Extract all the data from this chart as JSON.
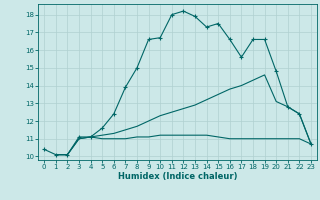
{
  "xlabel": "Humidex (Indice chaleur)",
  "bg_color": "#cce8e8",
  "grid_color": "#b0d0d0",
  "line_color": "#006666",
  "xlim": [
    -0.5,
    23.5
  ],
  "ylim": [
    9.8,
    18.6
  ],
  "xticks": [
    0,
    1,
    2,
    3,
    4,
    5,
    6,
    7,
    8,
    9,
    10,
    11,
    12,
    13,
    14,
    15,
    16,
    17,
    18,
    19,
    20,
    21,
    22,
    23
  ],
  "yticks": [
    10,
    11,
    12,
    13,
    14,
    15,
    16,
    17,
    18
  ],
  "line1_x": [
    0,
    1,
    2,
    3,
    4,
    5,
    6,
    7,
    8,
    9,
    10,
    11,
    12,
    13,
    14,
    15,
    16,
    17,
    18,
    19,
    20,
    21,
    22,
    23
  ],
  "line1_y": [
    10.4,
    10.1,
    10.1,
    11.1,
    11.1,
    11.6,
    12.4,
    13.9,
    15.0,
    16.6,
    16.7,
    18.0,
    18.2,
    17.9,
    17.3,
    17.5,
    16.6,
    15.6,
    16.6,
    16.6,
    14.8,
    12.8,
    12.4,
    10.7
  ],
  "line2_x": [
    1,
    2,
    3,
    4,
    5,
    6,
    7,
    8,
    9,
    10,
    11,
    12,
    13,
    14,
    15,
    16,
    17,
    18,
    19,
    20,
    21,
    22,
    23
  ],
  "line2_y": [
    10.1,
    10.1,
    11.0,
    11.1,
    11.2,
    11.3,
    11.5,
    11.7,
    12.0,
    12.3,
    12.5,
    12.7,
    12.9,
    13.2,
    13.5,
    13.8,
    14.0,
    14.3,
    14.6,
    13.1,
    12.8,
    12.4,
    10.7
  ],
  "line3_x": [
    1,
    2,
    3,
    4,
    5,
    6,
    7,
    8,
    9,
    10,
    11,
    12,
    13,
    14,
    15,
    16,
    17,
    18,
    19,
    20,
    21,
    22,
    23
  ],
  "line3_y": [
    10.1,
    10.1,
    11.0,
    11.1,
    11.0,
    11.0,
    11.0,
    11.1,
    11.1,
    11.2,
    11.2,
    11.2,
    11.2,
    11.2,
    11.1,
    11.0,
    11.0,
    11.0,
    11.0,
    11.0,
    11.0,
    11.0,
    10.7
  ]
}
